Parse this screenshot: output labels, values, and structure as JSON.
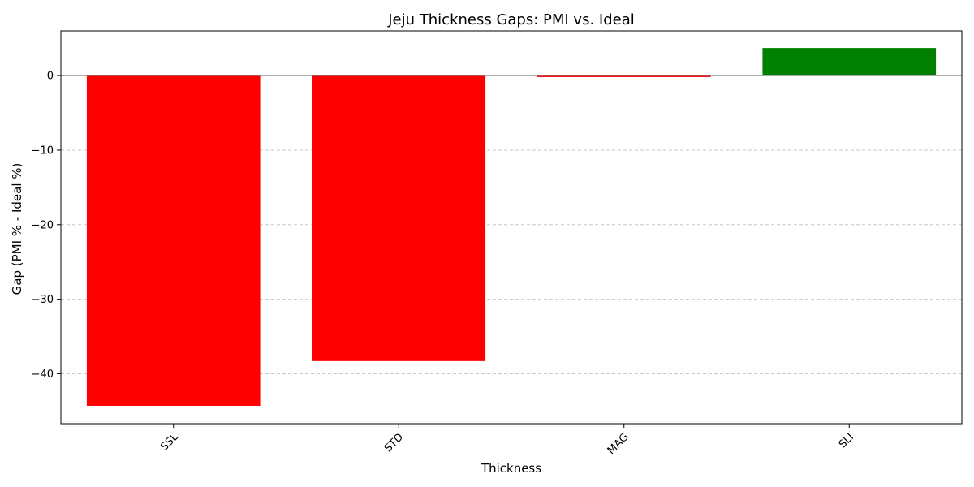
{
  "chart_data": {
    "type": "bar",
    "title": "Jeju Thickness Gaps: PMI vs. Ideal",
    "xlabel": "Thickness",
    "ylabel": "Gap (PMI % - Ideal %)",
    "categories": [
      "SSL",
      "STD",
      "MAG",
      "SLI"
    ],
    "values": [
      -44.3,
      -38.3,
      -0.2,
      3.7
    ],
    "colors": [
      "#ff0000",
      "#ff0000",
      "#ff0000",
      "#008000"
    ],
    "ylim": [
      -46.7,
      6.0
    ],
    "yticks": [
      0,
      -10,
      -20,
      -30,
      -40
    ],
    "ytick_labels": [
      "0",
      "−10",
      "−20",
      "−30",
      "−40"
    ],
    "grid": "y-dashed",
    "zero_line": true
  }
}
